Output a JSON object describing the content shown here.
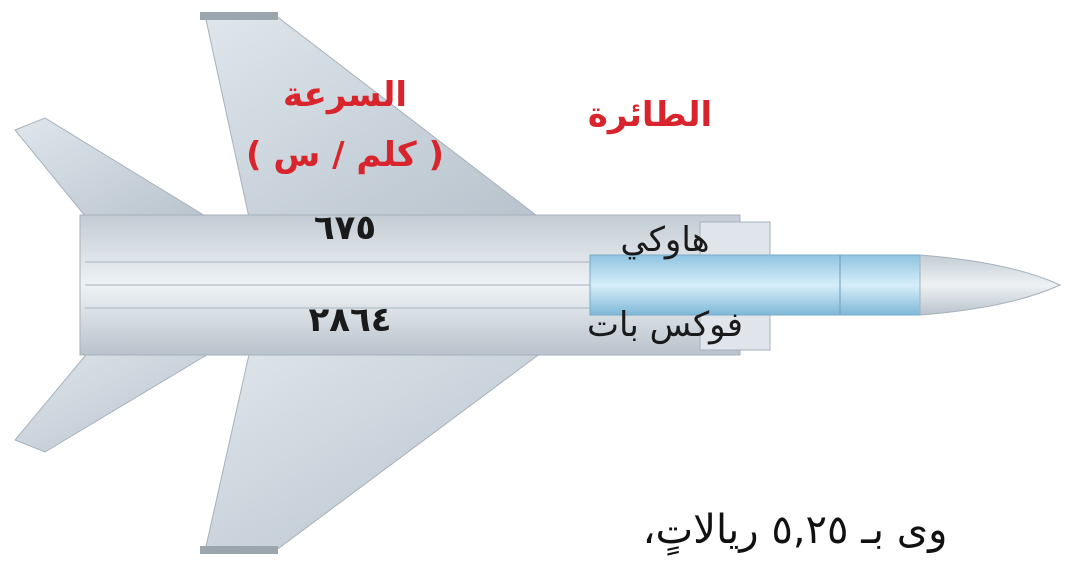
{
  "table": {
    "headers": [
      {
        "title": "الطائرة"
      },
      {
        "title": "السرعة",
        "unit": "( كلم / س )"
      }
    ],
    "rows": [
      [
        "هاوكي",
        "٦٧٥"
      ],
      [
        "فوكس بات",
        "٢٨٦٤"
      ]
    ]
  },
  "caption": "وى بـ ٥,٢٥ ريالاتٍ،"
}
